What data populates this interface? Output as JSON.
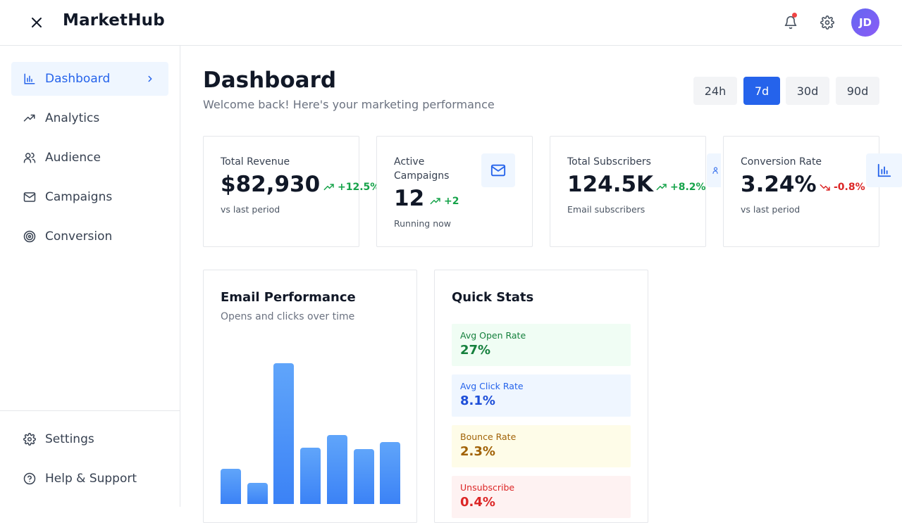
{
  "header": {
    "brand": "MarketHub",
    "avatar_initials": "JD",
    "icons": [
      "close-icon",
      "bell-icon",
      "gear-icon"
    ],
    "notification_dot_color": "#ef4444"
  },
  "sidebar": {
    "items": [
      {
        "label": "Dashboard",
        "icon": "bar-chart-icon",
        "active": true
      },
      {
        "label": "Analytics",
        "icon": "trending-up-icon"
      },
      {
        "label": "Audience",
        "icon": "users-icon"
      },
      {
        "label": "Campaigns",
        "icon": "mail-icon"
      },
      {
        "label": "Conversion",
        "icon": "target-icon"
      }
    ],
    "footer_items": [
      {
        "label": "Settings",
        "icon": "gear-icon"
      },
      {
        "label": "Help & Support",
        "icon": "help-circle-icon"
      }
    ]
  },
  "main": {
    "title": "Dashboard",
    "subtitle": "Welcome back! Here's your marketing performance",
    "ranges": [
      "24h",
      "7d",
      "30d",
      "90d"
    ],
    "selected_range": "7d",
    "cards": [
      {
        "label": "Total Revenue",
        "value": "$82,930",
        "delta": "+12.5%",
        "trend": "up",
        "foot": "vs last period"
      },
      {
        "label": "Active Campaigns",
        "value": "12",
        "delta": "+2",
        "trend": "up",
        "foot": "Running now",
        "icon": "mail-icon"
      },
      {
        "label": "Total Subscribers",
        "value": "124.5K",
        "delta": "+8.2%",
        "trend": "up",
        "foot": "Email subscribers",
        "icon": "users-icon"
      },
      {
        "label": "Conversion Rate",
        "value": "3.24%",
        "delta": "-0.8%",
        "trend": "down",
        "foot": "vs last period",
        "icon": "bar-chart-icon"
      }
    ],
    "email_performance": {
      "title": "Email Performance",
      "subtitle": "Opens and clicks over time"
    },
    "quick_stats": {
      "title": "Quick Stats",
      "items": [
        {
          "label": "Avg Open Rate",
          "value": "27%"
        },
        {
          "label": "Avg Click Rate",
          "value": "8.1%"
        },
        {
          "label": "Bounce Rate",
          "value": "2.3%"
        },
        {
          "label": "Unsubscribe",
          "value": "0.4%"
        }
      ]
    }
  },
  "chart_data": {
    "type": "bar",
    "title": "Email Performance",
    "subtitle": "Opens and clicks over time",
    "categories": [
      "",
      "",
      "",
      "",
      "",
      "",
      ""
    ],
    "values": [
      20,
      12,
      80,
      32,
      39,
      31,
      35
    ],
    "ylim": [
      0,
      100
    ],
    "grid": false,
    "color": "#3b82f6"
  },
  "colors": {
    "accent": "#2563eb",
    "positive": "#16a34a",
    "negative": "#dc2626"
  }
}
